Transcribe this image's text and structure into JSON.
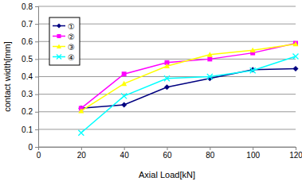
{
  "chart_data": {
    "type": "line",
    "x_label": "Axial Load[kN]",
    "y_label": "contact width[mm]",
    "x": [
      20,
      40,
      60,
      80,
      100,
      120
    ],
    "series": [
      {
        "name": "①",
        "color": "#000080",
        "marker": "diamond",
        "values": [
          0.22,
          0.24,
          0.34,
          0.39,
          0.44,
          0.445
        ]
      },
      {
        "name": "②",
        "color": "#ff00ff",
        "marker": "square",
        "values": [
          0.22,
          0.415,
          0.48,
          0.5,
          0.535,
          0.59
        ]
      },
      {
        "name": "③",
        "color": "#ffff00",
        "marker": "triangle",
        "values": [
          0.205,
          0.36,
          0.46,
          0.525,
          0.55,
          0.585
        ]
      },
      {
        "name": "④",
        "color": "#00ffff",
        "marker": "x",
        "values": [
          0.08,
          0.29,
          0.39,
          0.4,
          0.435,
          0.515
        ]
      }
    ],
    "xlim": [
      0,
      120
    ],
    "xticks": [
      0,
      20,
      40,
      60,
      80,
      100,
      120
    ],
    "ylim": [
      0,
      0.8
    ],
    "yticks": [
      0,
      0.1,
      0.2,
      0.3,
      0.4,
      0.5,
      0.6,
      0.7,
      0.8
    ],
    "grid": true,
    "legend": "upper left"
  }
}
